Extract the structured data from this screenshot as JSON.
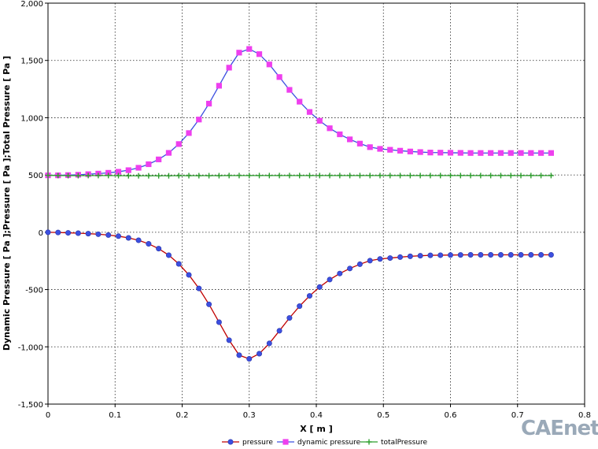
{
  "chart_data": {
    "type": "line",
    "title": "",
    "xlabel": "X [ m ]",
    "ylabel": "Dynamic Pressure [ Pa ];Pressure [ Pa ];Total Pressure [ Pa ]",
    "xlim": [
      0,
      0.8
    ],
    "ylim": [
      -1500,
      2000
    ],
    "xticks": [
      0,
      0.1,
      0.2,
      0.3,
      0.4,
      0.5,
      0.6,
      0.7,
      0.8
    ],
    "xtick_labels": [
      "0",
      "0.1",
      "0.2",
      "0.3",
      "0.4",
      "0.5",
      "0.6",
      "0.7",
      "0.8"
    ],
    "yticks": [
      -1500,
      -1000,
      -500,
      0,
      500,
      1000,
      1500,
      2000
    ],
    "ytick_labels": [
      "-1,500",
      "-1,000",
      "-500",
      "0",
      "500",
      "1,000",
      "1,500",
      "2,000"
    ],
    "grid": true,
    "legend_position": "bottom-center",
    "x": [
      0,
      0.015,
      0.03,
      0.045,
      0.06,
      0.075,
      0.09,
      0.105,
      0.12,
      0.135,
      0.15,
      0.165,
      0.18,
      0.195,
      0.21,
      0.225,
      0.24,
      0.255,
      0.27,
      0.285,
      0.3,
      0.315,
      0.33,
      0.345,
      0.36,
      0.375,
      0.39,
      0.405,
      0.42,
      0.435,
      0.45,
      0.465,
      0.48,
      0.495,
      0.51,
      0.525,
      0.54,
      0.555,
      0.57,
      0.585,
      0.6,
      0.615,
      0.63,
      0.645,
      0.66,
      0.675,
      0.69,
      0.705,
      0.72,
      0.735,
      0.75
    ],
    "series": [
      {
        "name": "pressure",
        "color": "#c00000",
        "marker": "circle",
        "marker_color": "#3c4fe0",
        "values": [
          0,
          -2,
          -5,
          -8,
          -12,
          -17,
          -24,
          -34,
          -49,
          -70,
          -101,
          -143,
          -200,
          -276,
          -372,
          -490,
          -629,
          -785,
          -942,
          -1073,
          -1105,
          -1060,
          -970,
          -860,
          -748,
          -645,
          -555,
          -478,
          -413,
          -360,
          -316,
          -279,
          -248,
          -233,
          -225,
          -217,
          -210,
          -205,
          -201,
          -200,
          -199,
          -198,
          -197,
          -197,
          -197,
          -197,
          -197,
          -197,
          -197,
          -197,
          -197
        ]
      },
      {
        "name": "dynamic pressure",
        "color": "#3c4fe0",
        "marker": "square",
        "marker_color": "#ee3fee",
        "values": [
          497,
          497,
          499,
          502,
          507,
          512,
          519,
          528,
          542,
          563,
          594,
          636,
          693,
          770,
          866,
          984,
          1123,
          1279,
          1437,
          1568,
          1600,
          1555,
          1465,
          1355,
          1243,
          1140,
          1050,
          973,
          908,
          855,
          811,
          774,
          743,
          728,
          720,
          712,
          705,
          700,
          696,
          695,
          694,
          693,
          692,
          692,
          692,
          692,
          692,
          692,
          692,
          692,
          692
        ]
      },
      {
        "name": "totalPressure",
        "color": "#2e9f2e",
        "marker": "plus",
        "marker_color": "#2e9f2e",
        "values": [
          497,
          495,
          494,
          494,
          495,
          495,
          495,
          494,
          493,
          493,
          493,
          493,
          493,
          494,
          494,
          494,
          494,
          494,
          495,
          495,
          495,
          495,
          495,
          495,
          495,
          495,
          495,
          495,
          495,
          495,
          495,
          495,
          495,
          495,
          495,
          495,
          495,
          495,
          495,
          495,
          495,
          495,
          495,
          495,
          495,
          495,
          495,
          495,
          495,
          495,
          495
        ]
      }
    ]
  },
  "watermark_text": "CAEnet"
}
